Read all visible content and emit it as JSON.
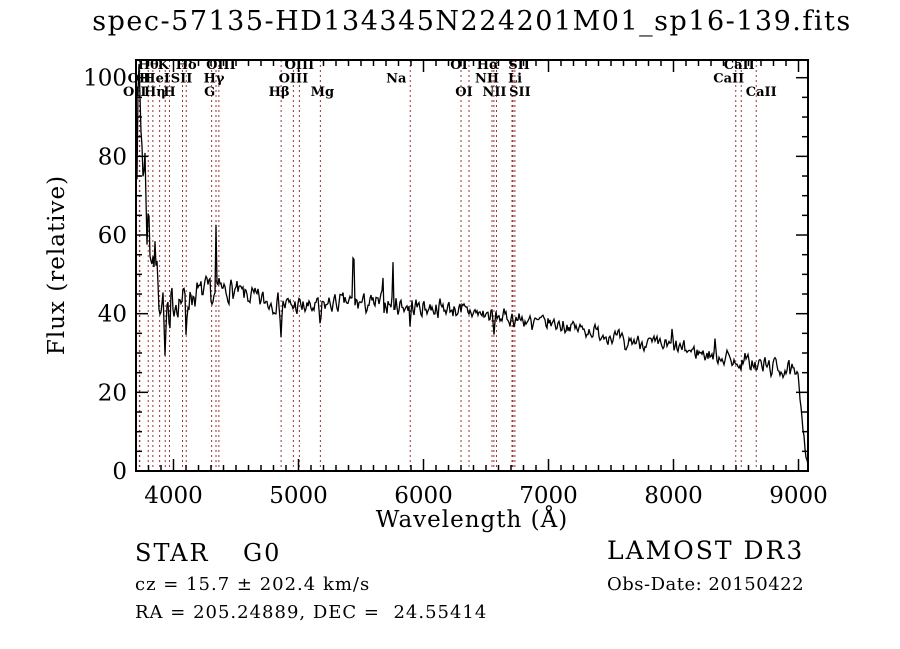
{
  "title": "spec-57135-HD134345N224201M01_sp16-139.fits",
  "annotations": {
    "object_class": "STAR",
    "subclass": "G0",
    "cz": "cz = 15.7 ± 202.4 km/s",
    "ra_dec": "RA = 205.24889, DEC =  24.55414",
    "survey": "LAMOST DR3",
    "obs_date": "Obs-Date: 20150422"
  },
  "chart_data": {
    "type": "line",
    "title": "spec-57135-HD134345N224201M01_sp16-139.fits",
    "xlabel": "Wavelength (Å)",
    "ylabel": "Flux (relative)",
    "xlim": [
      3700,
      9076
    ],
    "ylim": [
      0,
      104.5
    ],
    "xticks_major": [
      4000,
      5000,
      6000,
      7000,
      8000,
      9000
    ],
    "xticks_minor_step": 100,
    "yticks_major": [
      0,
      20,
      40,
      60,
      80,
      100
    ],
    "yticks_minor_step": 5,
    "grid": false,
    "curve_color": "#000000",
    "marker_color": "#993333",
    "spectral_lines": [
      {
        "label": "OII",
        "wavelength": 3727,
        "row": 2,
        "dx": 0
      },
      {
        "label": "OII",
        "wavelength": 3730,
        "row": 3,
        "dx": -5
      },
      {
        "label": "Hθ",
        "wavelength": 3798,
        "row": 1,
        "dx": 0
      },
      {
        "label": "Hη",
        "wavelength": 3835,
        "row": 3,
        "dx": 2
      },
      {
        "label": "HeI",
        "wavelength": 3889,
        "row": 2,
        "dx": -3
      },
      {
        "label": "K",
        "wavelength": 3934,
        "row": 1,
        "dx": -2
      },
      {
        "label": "H",
        "wavelength": 3968,
        "row": 3,
        "dx": 0
      },
      {
        "label": "SII",
        "wavelength": 4072,
        "row": 2,
        "dx": -1
      },
      {
        "label": "Hδ",
        "wavelength": 4102,
        "row": 1,
        "dx": 0
      },
      {
        "label": "G",
        "wavelength": 4305,
        "row": 3,
        "dx": -2
      },
      {
        "label": "Hγ",
        "wavelength": 4340,
        "row": 2,
        "dx": -2
      },
      {
        "label": "OIII",
        "wavelength": 4363,
        "row": 1,
        "dx": 2
      },
      {
        "label": "Hβ",
        "wavelength": 4861,
        "row": 3,
        "dx": -2
      },
      {
        "label": "OIII",
        "wavelength": 4959,
        "row": 2,
        "dx": 0
      },
      {
        "label": "OIII",
        "wavelength": 5007,
        "row": 1,
        "dx": 0
      },
      {
        "label": "Mg",
        "wavelength": 5175,
        "row": 3,
        "dx": 2
      },
      {
        "label": "Na",
        "wavelength": 5894,
        "row": 2,
        "dx": -14
      },
      {
        "label": "OI",
        "wavelength": 6300,
        "row": 1,
        "dx": -2
      },
      {
        "label": "OI",
        "wavelength": 6364,
        "row": 3,
        "dx": -5
      },
      {
        "label": "NII",
        "wavelength": 6548,
        "row": 2,
        "dx": -5
      },
      {
        "label": "Hα",
        "wavelength": 6563,
        "row": 1,
        "dx": -6
      },
      {
        "label": "NII",
        "wavelength": 6584,
        "row": 3,
        "dx": -2
      },
      {
        "label": "Li",
        "wavelength": 6708,
        "row": 2,
        "dx": 3
      },
      {
        "label": "SII",
        "wavelength": 6716,
        "row": 1,
        "dx": 6
      },
      {
        "label": "SII",
        "wavelength": 6731,
        "row": 3,
        "dx": 5
      },
      {
        "label": "CaII",
        "wavelength": 8498,
        "row": 2,
        "dx": -7
      },
      {
        "label": "CaII",
        "wavelength": 8542,
        "row": 1,
        "dx": -2
      },
      {
        "label": "CaII",
        "wavelength": 8662,
        "row": 3,
        "dx": 5
      }
    ],
    "continuum": [
      [
        3700,
        95
      ],
      [
        3715,
        90
      ],
      [
        3730,
        93
      ],
      [
        3745,
        86
      ],
      [
        3760,
        80
      ],
      [
        3775,
        74
      ],
      [
        3790,
        66
      ],
      [
        3810,
        60
      ],
      [
        3835,
        56
      ],
      [
        3860,
        52
      ],
      [
        3885,
        47
      ],
      [
        3910,
        43
      ],
      [
        3940,
        41
      ],
      [
        3970,
        42
      ],
      [
        4000,
        43
      ],
      [
        4060,
        43.5
      ],
      [
        4150,
        44.5
      ],
      [
        4250,
        46
      ],
      [
        4350,
        46
      ],
      [
        4450,
        46
      ],
      [
        4550,
        45
      ],
      [
        4650,
        44
      ],
      [
        4750,
        43
      ],
      [
        4850,
        42.5
      ],
      [
        4950,
        42
      ],
      [
        5100,
        41.5
      ],
      [
        5250,
        42.5
      ],
      [
        5400,
        43
      ],
      [
        5550,
        42.5
      ],
      [
        5700,
        42.5
      ],
      [
        5850,
        42
      ],
      [
        6000,
        41.5
      ],
      [
        6150,
        41.5
      ],
      [
        6300,
        41
      ],
      [
        6450,
        40
      ],
      [
        6600,
        39.2
      ],
      [
        6750,
        38.6
      ],
      [
        6900,
        38
      ],
      [
        7050,
        37.5
      ],
      [
        7200,
        36.5
      ],
      [
        7350,
        35.5
      ],
      [
        7500,
        34.2
      ],
      [
        7650,
        33.2
      ],
      [
        7800,
        32.5
      ],
      [
        7950,
        31.8
      ],
      [
        8100,
        30.8
      ],
      [
        8250,
        29.8
      ],
      [
        8400,
        29
      ],
      [
        8550,
        28
      ],
      [
        8700,
        27
      ],
      [
        8850,
        26.2
      ],
      [
        8950,
        25
      ],
      [
        9000,
        23
      ],
      [
        9030,
        14
      ],
      [
        9055,
        5
      ],
      [
        9076,
        2
      ]
    ],
    "noise_profile": [
      [
        3700,
        20
      ],
      [
        3750,
        19
      ],
      [
        3800,
        14
      ],
      [
        3850,
        11
      ],
      [
        3900,
        8
      ],
      [
        3950,
        6.5
      ],
      [
        4000,
        5
      ],
      [
        4100,
        4.5
      ],
      [
        4250,
        4
      ],
      [
        4500,
        3.6
      ],
      [
        4800,
        3.2
      ],
      [
        5200,
        3
      ],
      [
        5600,
        3
      ],
      [
        6000,
        2.8
      ],
      [
        6400,
        2.6
      ],
      [
        6800,
        2.5
      ],
      [
        7200,
        2.4
      ],
      [
        7600,
        2.3
      ],
      [
        8000,
        2.4
      ],
      [
        8400,
        2.6
      ],
      [
        8700,
        2.8
      ],
      [
        8950,
        3
      ],
      [
        9010,
        2
      ],
      [
        9076,
        1
      ]
    ],
    "features": [
      {
        "center": 3934,
        "amp": -15,
        "width": 7
      },
      {
        "center": 3968,
        "amp": -12,
        "width": 7
      },
      {
        "center": 4102,
        "amp": -10,
        "width": 6
      },
      {
        "center": 4305,
        "amp": -6,
        "width": 9
      },
      {
        "center": 4341,
        "amp": 17,
        "width": 4
      },
      {
        "center": 4861,
        "amp": -7.5,
        "width": 7
      },
      {
        "center": 5175,
        "amp": -4.5,
        "width": 11
      },
      {
        "center": 5440,
        "amp": 28,
        "width": 4
      },
      {
        "center": 5674,
        "amp": 10,
        "width": 4
      },
      {
        "center": 5754,
        "amp": 12,
        "width": 4
      },
      {
        "center": 5894,
        "amp": -5.5,
        "width": 6
      },
      {
        "center": 6300,
        "amp": -2.5,
        "width": 5
      },
      {
        "center": 6563,
        "amp": -5.5,
        "width": 7
      },
      {
        "center": 6870,
        "amp": -3,
        "width": 10
      },
      {
        "center": 7615,
        "amp": -4,
        "width": 14
      },
      {
        "center": 7990,
        "amp": 4.5,
        "width": 5
      },
      {
        "center": 8330,
        "amp": 3,
        "width": 4
      },
      {
        "center": 8498,
        "amp": -3,
        "width": 7
      },
      {
        "center": 8542,
        "amp": -3.5,
        "width": 7
      },
      {
        "center": 8662,
        "amp": -3,
        "width": 7
      }
    ],
    "noise_seed": 7,
    "sample_step": 8
  }
}
